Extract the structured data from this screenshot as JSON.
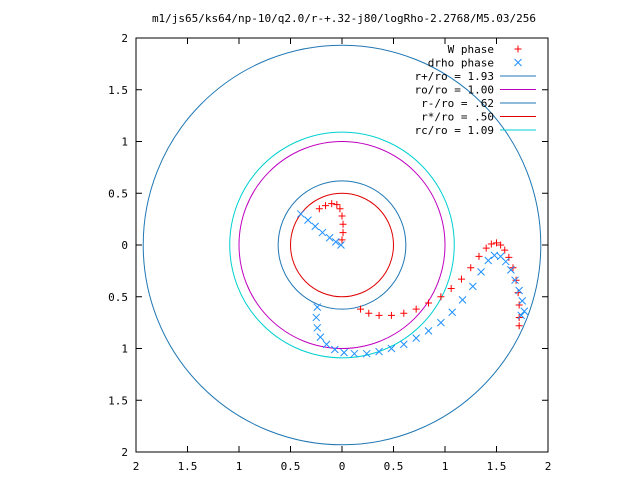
{
  "chart_data": {
    "type": "scatter",
    "title": "m1/js65/ks64/np-10/q2.0/r-+.32-j80/logRho-2.2768/M5.03/256",
    "xlim": [
      -2,
      2
    ],
    "ylim": [
      -2,
      2
    ],
    "x_tick_labels": [
      "2",
      "1.5",
      "1",
      "0.5",
      "0",
      "0.5",
      "1",
      "1.5",
      "2"
    ],
    "y_tick_labels": [
      "2",
      "1.5",
      "1",
      "0.5",
      "0",
      "0.5",
      "1",
      "1.5",
      "2"
    ],
    "grid": false,
    "legend_position": "top-right",
    "circles": [
      {
        "label": "r+/ro = 1.93",
        "radius": 1.93,
        "color": "#1f77b4"
      },
      {
        "label": "ro/ro = 1.00",
        "radius": 1.0,
        "color": "#c000c0"
      },
      {
        "label": "r-/ro = .62",
        "radius": 0.62,
        "color": "#1f77b4"
      },
      {
        "label": "r*/ro = .50",
        "radius": 0.5,
        "color": "#e00000"
      },
      {
        "label": "rc/ro = 1.09",
        "radius": 1.09,
        "color": "#00d0d0"
      }
    ],
    "series": [
      {
        "name": "W phase",
        "marker": "+",
        "color": "#ff0000",
        "points": [
          [
            -0.22,
            0.35
          ],
          [
            -0.16,
            0.38
          ],
          [
            -0.1,
            0.4
          ],
          [
            -0.05,
            0.39
          ],
          [
            -0.02,
            0.35
          ],
          [
            0.0,
            0.28
          ],
          [
            0.01,
            0.2
          ],
          [
            0.01,
            0.12
          ],
          [
            0.0,
            0.05
          ],
          [
            0.18,
            -0.62
          ],
          [
            0.26,
            -0.66
          ],
          [
            0.36,
            -0.68
          ],
          [
            0.48,
            -0.68
          ],
          [
            0.6,
            -0.66
          ],
          [
            0.72,
            -0.62
          ],
          [
            0.84,
            -0.56
          ],
          [
            0.96,
            -0.5
          ],
          [
            1.06,
            -0.42
          ],
          [
            1.16,
            -0.33
          ],
          [
            1.25,
            -0.22
          ],
          [
            1.33,
            -0.11
          ],
          [
            1.4,
            -0.03
          ],
          [
            1.45,
            0.01
          ],
          [
            1.5,
            0.02
          ],
          [
            1.54,
            0.0
          ],
          [
            1.58,
            -0.05
          ],
          [
            1.62,
            -0.12
          ],
          [
            1.66,
            -0.22
          ],
          [
            1.69,
            -0.34
          ],
          [
            1.71,
            -0.46
          ],
          [
            1.72,
            -0.58
          ],
          [
            1.72,
            -0.7
          ],
          [
            1.72,
            -0.78
          ]
        ]
      },
      {
        "name": "drho phase",
        "marker": "x",
        "color": "#1e90ff",
        "points": [
          [
            -0.4,
            0.3
          ],
          [
            -0.33,
            0.24
          ],
          [
            -0.26,
            0.18
          ],
          [
            -0.19,
            0.12
          ],
          [
            -0.12,
            0.07
          ],
          [
            -0.06,
            0.03
          ],
          [
            -0.01,
            0.0
          ],
          [
            -0.24,
            -0.6
          ],
          [
            -0.25,
            -0.7
          ],
          [
            -0.24,
            -0.8
          ],
          [
            -0.21,
            -0.89
          ],
          [
            -0.15,
            -0.96
          ],
          [
            -0.07,
            -1.01
          ],
          [
            0.02,
            -1.04
          ],
          [
            0.12,
            -1.05
          ],
          [
            0.24,
            -1.05
          ],
          [
            0.36,
            -1.03
          ],
          [
            0.48,
            -1.0
          ],
          [
            0.6,
            -0.96
          ],
          [
            0.72,
            -0.9
          ],
          [
            0.84,
            -0.83
          ],
          [
            0.96,
            -0.75
          ],
          [
            1.07,
            -0.65
          ],
          [
            1.17,
            -0.53
          ],
          [
            1.27,
            -0.4
          ],
          [
            1.35,
            -0.26
          ],
          [
            1.42,
            -0.15
          ],
          [
            1.48,
            -0.1
          ],
          [
            1.54,
            -0.11
          ],
          [
            1.59,
            -0.16
          ],
          [
            1.64,
            -0.24
          ],
          [
            1.68,
            -0.34
          ],
          [
            1.72,
            -0.44
          ],
          [
            1.75,
            -0.54
          ],
          [
            1.77,
            -0.64
          ],
          [
            1.74,
            -0.68
          ]
        ]
      }
    ]
  }
}
